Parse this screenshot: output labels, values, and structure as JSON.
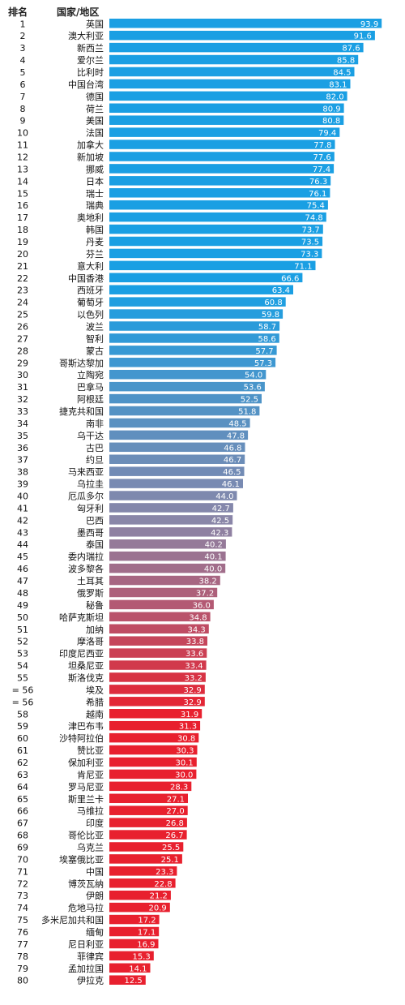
{
  "header": {
    "rank": "排名",
    "name": "国家/地区"
  },
  "chart_data": {
    "type": "bar",
    "orientation": "horizontal",
    "xlim": [
      0,
      100
    ],
    "grid": false,
    "colors": {
      "top": "#1a9fe3",
      "middle": "#8a86a8",
      "bottom": "#e8202e"
    },
    "ranks": [
      "1",
      "2",
      "3",
      "4",
      "5",
      "6",
      "7",
      "8",
      "9",
      "10",
      "11",
      "12",
      "13",
      "14",
      "15",
      "16",
      "17",
      "18",
      "19",
      "20",
      "21",
      "22",
      "23",
      "24",
      "25",
      "26",
      "27",
      "28",
      "29",
      "30",
      "31",
      "32",
      "33",
      "34",
      "35",
      "36",
      "37",
      "38",
      "39",
      "40",
      "41",
      "42",
      "43",
      "44",
      "45",
      "46",
      "47",
      "48",
      "49",
      "50",
      "51",
      "52",
      "53",
      "54",
      "55",
      "= 56",
      "= 56",
      "58",
      "59",
      "60",
      "61",
      "62",
      "63",
      "64",
      "65",
      "66",
      "67",
      "68",
      "69",
      "70",
      "71",
      "72",
      "73",
      "74",
      "75",
      "76",
      "77",
      "78",
      "79",
      "80"
    ],
    "categories": [
      "英国",
      "澳大利亚",
      "新西兰",
      "爱尔兰",
      "比利时",
      "中国台湾",
      "德国",
      "荷兰",
      "美国",
      "法国",
      "加拿大",
      "新加坡",
      "挪威",
      "日本",
      "瑞士",
      "瑞典",
      "奥地利",
      "韩国",
      "丹麦",
      "芬兰",
      "意大利",
      "中国香港",
      "西班牙",
      "葡萄牙",
      "以色列",
      "波兰",
      "智利",
      "蒙古",
      "哥斯达黎加",
      "立陶宛",
      "巴拿马",
      "阿根廷",
      "捷克共和国",
      "南非",
      "乌干达",
      "古巴",
      "约旦",
      "马来西亚",
      "乌拉圭",
      "厄瓜多尔",
      "匈牙利",
      "巴西",
      "墨西哥",
      "泰国",
      "委内瑞拉",
      "波多黎各",
      "土耳其",
      "俄罗斯",
      "秘鲁",
      "哈萨克斯坦",
      "加纳",
      "摩洛哥",
      "印度尼西亚",
      "坦桑尼亚",
      "斯洛伐克",
      "埃及",
      "希腊",
      "越南",
      "津巴布韦",
      "沙特阿拉伯",
      "赞比亚",
      "保加利亚",
      "肯尼亚",
      "罗马尼亚",
      "斯里兰卡",
      "马维拉",
      "印度",
      "哥伦比亚",
      "乌克兰",
      "埃塞俄比亚",
      "中国",
      "博茨瓦纳",
      "伊朗",
      "危地马拉",
      "多米尼加共和国",
      "缅甸",
      "尼日利亚",
      "菲律宾",
      "孟加拉国",
      "伊拉克"
    ],
    "values": [
      93.9,
      91.6,
      87.6,
      85.8,
      84.5,
      83.1,
      82.0,
      80.9,
      80.8,
      79.4,
      77.8,
      77.6,
      77.4,
      76.3,
      76.1,
      75.4,
      74.8,
      73.7,
      73.5,
      73.3,
      71.1,
      66.6,
      63.4,
      60.8,
      59.8,
      58.7,
      58.6,
      57.7,
      57.3,
      54.0,
      53.6,
      52.5,
      51.8,
      48.5,
      47.8,
      46.8,
      46.7,
      46.5,
      46.1,
      44.0,
      42.7,
      42.5,
      42.3,
      40.2,
      40.1,
      40.0,
      38.2,
      37.2,
      36.0,
      34.8,
      34.3,
      33.8,
      33.6,
      33.4,
      33.2,
      32.9,
      32.9,
      31.9,
      31.3,
      30.8,
      30.3,
      30.1,
      30.0,
      28.3,
      27.1,
      27.0,
      26.8,
      26.7,
      25.5,
      25.1,
      23.3,
      22.8,
      21.2,
      20.9,
      17.2,
      17.1,
      16.9,
      15.3,
      14.1,
      12.5
    ],
    "value_labels": [
      "93.9",
      "91.6",
      "87.6",
      "85.8",
      "84.5",
      "83.1",
      "82.0",
      "80.9",
      "80.8",
      "79.4",
      "77.8",
      "77.6",
      "77.4",
      "76.3",
      "76.1",
      "75.4",
      "74.8",
      "73.7",
      "73.5",
      "73.3",
      "71.1",
      "66.6",
      "63.4",
      "60.8",
      "59.8",
      "58.7",
      "58.6",
      "57.7",
      "57.3",
      "54.0",
      "53.6",
      "52.5",
      "51.8",
      "48.5",
      "47.8",
      "46.8",
      "46.7",
      "46.5",
      "46.1",
      "44.0",
      "42.7",
      "42.5",
      "42.3",
      "40.2",
      "40.1",
      "40.0",
      "38.2",
      "37.2",
      "36.0",
      "34.8",
      "34.3",
      "33.8",
      "33.6",
      "33.4",
      "33.2",
      "32.9",
      "32.9",
      "31.9",
      "31.3",
      "30.8",
      "30.3",
      "30.1",
      "30.0",
      "28.3",
      "27.1",
      "27.0",
      "26.8",
      "26.7",
      "25.5",
      "25.1",
      "23.3",
      "22.8",
      "21.2",
      "20.9",
      "17.2",
      "17.1",
      "16.9",
      "15.3",
      "14.1",
      "12.5"
    ]
  }
}
